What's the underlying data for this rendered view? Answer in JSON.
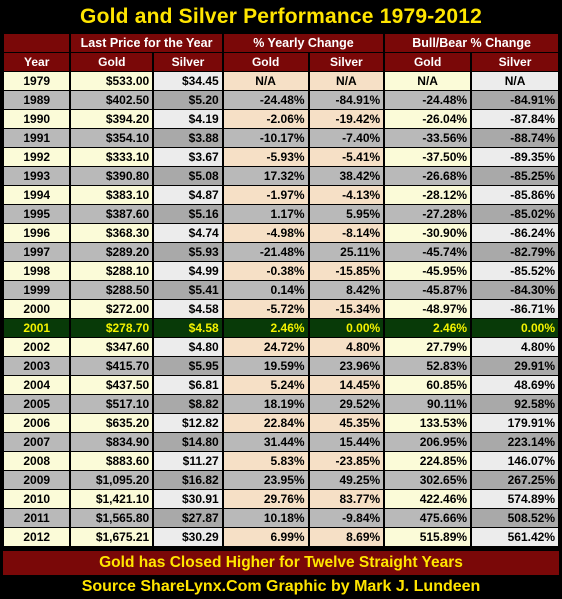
{
  "title": "Gold and Silver Performance 1979-2012",
  "header": {
    "year": "Year",
    "last_price": "Last Price for the Year",
    "yearly_change": "% Yearly Change",
    "bull_bear": "Bull/Bear % Change",
    "gold": "Gold",
    "silver": "Silver"
  },
  "rows": [
    [
      "1979",
      "$533.00",
      "$34.45",
      "N/A",
      "N/A",
      "N/A",
      "N/A"
    ],
    [
      "1989",
      "$402.50",
      "$5.20",
      "-24.48%",
      "-84.91%",
      "-24.48%",
      "-84.91%"
    ],
    [
      "1990",
      "$394.20",
      "$4.19",
      "-2.06%",
      "-19.42%",
      "-26.04%",
      "-87.84%"
    ],
    [
      "1991",
      "$354.10",
      "$3.88",
      "-10.17%",
      "-7.40%",
      "-33.56%",
      "-88.74%"
    ],
    [
      "1992",
      "$333.10",
      "$3.67",
      "-5.93%",
      "-5.41%",
      "-37.50%",
      "-89.35%"
    ],
    [
      "1993",
      "$390.80",
      "$5.08",
      "17.32%",
      "38.42%",
      "-26.68%",
      "-85.25%"
    ],
    [
      "1994",
      "$383.10",
      "$4.87",
      "-1.97%",
      "-4.13%",
      "-28.12%",
      "-85.86%"
    ],
    [
      "1995",
      "$387.60",
      "$5.16",
      "1.17%",
      "5.95%",
      "-27.28%",
      "-85.02%"
    ],
    [
      "1996",
      "$368.30",
      "$4.74",
      "-4.98%",
      "-8.14%",
      "-30.90%",
      "-86.24%"
    ],
    [
      "1997",
      "$289.20",
      "$5.93",
      "-21.48%",
      "25.11%",
      "-45.74%",
      "-82.79%"
    ],
    [
      "1998",
      "$288.10",
      "$4.99",
      "-0.38%",
      "-15.85%",
      "-45.95%",
      "-85.52%"
    ],
    [
      "1999",
      "$288.50",
      "$5.41",
      "0.14%",
      "8.42%",
      "-45.87%",
      "-84.30%"
    ],
    [
      "2000",
      "$272.00",
      "$4.58",
      "-5.72%",
      "-15.34%",
      "-48.97%",
      "-86.71%"
    ],
    [
      "2001",
      "$278.70",
      "$4.58",
      "2.46%",
      "0.00%",
      "2.46%",
      "0.00%"
    ],
    [
      "2002",
      "$347.60",
      "$4.80",
      "24.72%",
      "4.80%",
      "27.79%",
      "4.80%"
    ],
    [
      "2003",
      "$415.70",
      "$5.95",
      "19.59%",
      "23.96%",
      "52.83%",
      "29.91%"
    ],
    [
      "2004",
      "$437.50",
      "$6.81",
      "5.24%",
      "14.45%",
      "60.85%",
      "48.69%"
    ],
    [
      "2005",
      "$517.10",
      "$8.82",
      "18.19%",
      "29.52%",
      "90.11%",
      "92.58%"
    ],
    [
      "2006",
      "$635.20",
      "$12.82",
      "22.84%",
      "45.35%",
      "133.53%",
      "179.91%"
    ],
    [
      "2007",
      "$834.90",
      "$14.80",
      "31.44%",
      "15.44%",
      "206.95%",
      "223.14%"
    ],
    [
      "2008",
      "$883.60",
      "$11.27",
      "5.83%",
      "-23.85%",
      "224.85%",
      "146.07%"
    ],
    [
      "2009",
      "$1,095.20",
      "$16.82",
      "23.95%",
      "49.25%",
      "302.65%",
      "267.25%"
    ],
    [
      "2010",
      "$1,421.10",
      "$30.91",
      "29.76%",
      "83.77%",
      "422.46%",
      "574.89%"
    ],
    [
      "2011",
      "$1,565.80",
      "$27.87",
      "10.18%",
      "-9.84%",
      "475.66%",
      "508.52%"
    ],
    [
      "2012",
      "$1,675.21",
      "$30.29",
      "6.99%",
      "8.69%",
      "515.89%",
      "561.42%"
    ]
  ],
  "footer_note": "Gold has Closed Higher for Twelve Straight Years",
  "source": "Source ShareLynx.Com  Graphic by Mark J. Lundeen"
}
